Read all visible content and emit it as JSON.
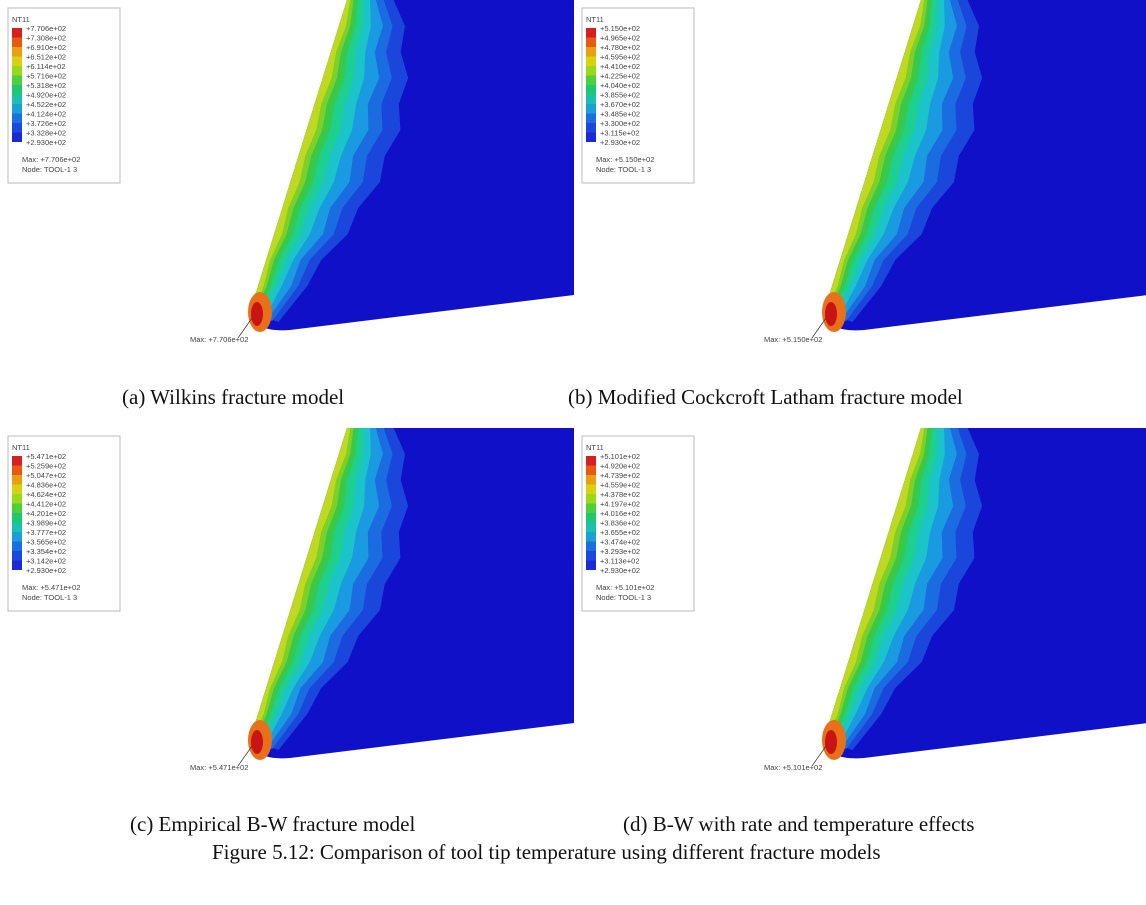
{
  "panels": [
    {
      "caption": "(a) Wilkins fracture model",
      "legend_title": "NT11",
      "legend": [
        "+7.706e+02",
        "+7.308e+02",
        "+6.910e+02",
        "+6.512e+02",
        "+6.114e+02",
        "+5.716e+02",
        "+5.318e+02",
        "+4.920e+02",
        "+4.522e+02",
        "+4.124e+02",
        "+3.726e+02",
        "+3.328e+02",
        "+2.930e+02"
      ],
      "legend_max": "Max: +7.706e+02",
      "legend_node": "Node: TOOL-1 3",
      "tip_label": "Max: +7.706e+02"
    },
    {
      "caption": "(b) Modified Cockcroft Latham fracture model",
      "legend_title": "NT11",
      "legend": [
        "+5.150e+02",
        "+4.965e+02",
        "+4.780e+02",
        "+4.595e+02",
        "+4.410e+02",
        "+4.225e+02",
        "+4.040e+02",
        "+3.855e+02",
        "+3.670e+02",
        "+3.485e+02",
        "+3.300e+02",
        "+3.115e+02",
        "+2.930e+02"
      ],
      "legend_max": "Max: +5.150e+02",
      "legend_node": "Node: TOOL-1 3",
      "tip_label": "Max: +5.150e+02"
    },
    {
      "caption": "(c) Empirical B-W fracture model",
      "legend_title": "NT11",
      "legend": [
        "+5.471e+02",
        "+5.259e+02",
        "+5.047e+02",
        "+4.836e+02",
        "+4.624e+02",
        "+4.412e+02",
        "+4.201e+02",
        "+3.989e+02",
        "+3.777e+02",
        "+3.565e+02",
        "+3.354e+02",
        "+3.142e+02",
        "+2.930e+02"
      ],
      "legend_max": "Max: +5.471e+02",
      "legend_node": "Node: TOOL-1 3",
      "tip_label": "Max: +5.471e+02"
    },
    {
      "caption": "(d) B-W with rate and temperature effects",
      "legend_title": "NT11",
      "legend": [
        "+5.101e+02",
        "+4.920e+02",
        "+4.739e+02",
        "+4.559e+02",
        "+4.378e+02",
        "+4.197e+02",
        "+4.016e+02",
        "+3.836e+02",
        "+3.655e+02",
        "+3.474e+02",
        "+3.293e+02",
        "+3.113e+02",
        "+2.930e+02"
      ],
      "legend_max": "Max: +5.101e+02",
      "legend_node": "Node: TOOL-1 3",
      "tip_label": "Max: +5.101e+02"
    }
  ],
  "figure_caption": "Figure 5.12: Comparison of tool tip temperature using different fracture models"
}
